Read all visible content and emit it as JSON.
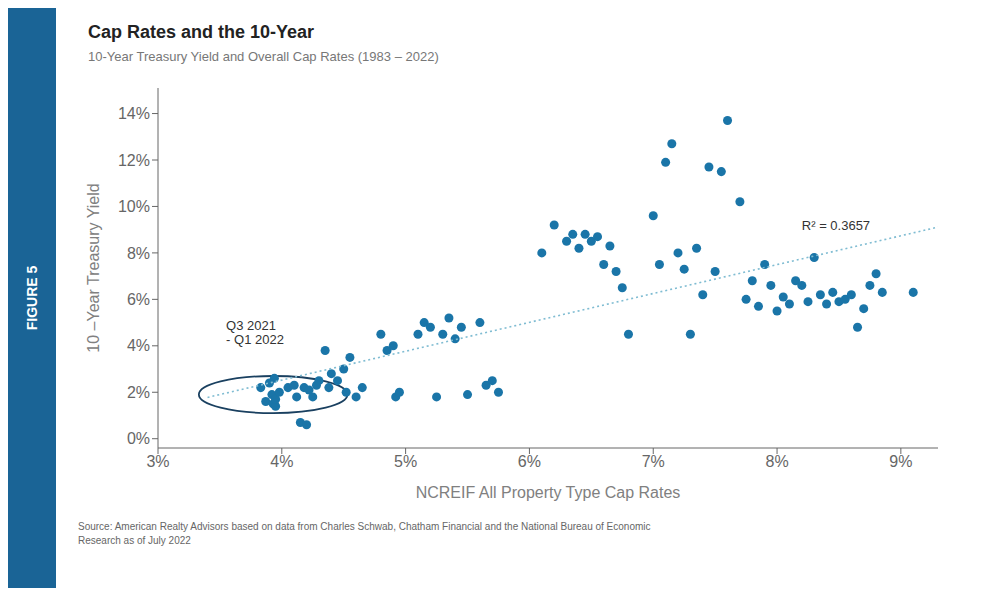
{
  "chart_data": {
    "type": "scatter",
    "title": "Cap Rates and the 10-Year",
    "subtitle": "10-Year Treasury Yield and Overall Cap Rates (1983 – 2022)",
    "xlabel": "NCREIF All Property Type Cap Rates",
    "ylabel": "10 –Year Treasury Yield",
    "figure_label": {
      "text": "FIGURE 5",
      "color": "#1a6496"
    },
    "source_text": "Source: American Realty Advisors based on data from Charles Schwab, Chatham Financial and the National Bureau of Economic\nResearch as of July 2022",
    "color": "#1a75a8",
    "grid": false,
    "x": [
      3.83,
      3.87,
      3.9,
      3.92,
      3.93,
      3.94,
      3.95,
      3.95,
      3.98,
      4.05,
      4.1,
      4.12,
      4.15,
      4.18,
      4.2,
      4.22,
      4.25,
      4.28,
      4.3,
      4.35,
      4.38,
      4.4,
      4.45,
      4.5,
      4.52,
      4.55,
      4.6,
      4.65,
      4.8,
      4.85,
      4.9,
      4.92,
      4.95,
      5.1,
      5.15,
      5.2,
      5.25,
      5.3,
      5.35,
      5.4,
      5.45,
      5.5,
      5.6,
      5.65,
      5.7,
      5.75,
      6.1,
      6.2,
      6.3,
      6.35,
      6.4,
      6.45,
      6.5,
      6.55,
      6.6,
      6.65,
      6.7,
      6.75,
      6.8,
      7.0,
      7.05,
      7.1,
      7.15,
      7.2,
      7.25,
      7.3,
      7.35,
      7.4,
      7.45,
      7.5,
      7.55,
      7.6,
      7.7,
      7.75,
      7.8,
      7.85,
      7.9,
      7.95,
      8.0,
      8.05,
      8.1,
      8.15,
      8.2,
      8.25,
      8.3,
      8.35,
      8.4,
      8.45,
      8.5,
      8.55,
      8.6,
      8.65,
      8.7,
      8.75,
      8.8,
      8.85,
      9.1
    ],
    "values": [
      2.2,
      1.6,
      2.4,
      1.9,
      1.5,
      2.6,
      1.4,
      1.7,
      2.0,
      2.2,
      2.3,
      1.8,
      0.7,
      2.2,
      0.6,
      2.1,
      1.8,
      2.3,
      2.5,
      3.8,
      2.2,
      2.8,
      2.5,
      3.0,
      2.0,
      3.5,
      1.8,
      2.2,
      4.5,
      3.8,
      4.0,
      1.8,
      2.0,
      4.5,
      5.0,
      4.8,
      1.8,
      4.5,
      5.2,
      4.3,
      4.8,
      1.9,
      5.0,
      2.3,
      2.5,
      2.0,
      8.0,
      9.2,
      8.5,
      8.8,
      8.2,
      8.8,
      8.5,
      8.7,
      7.5,
      8.3,
      7.2,
      6.5,
      4.5,
      9.6,
      7.5,
      11.9,
      12.7,
      8.0,
      7.3,
      4.5,
      8.2,
      6.2,
      11.7,
      7.2,
      11.5,
      13.7,
      10.2,
      6.0,
      6.8,
      5.7,
      7.5,
      6.6,
      5.5,
      6.1,
      5.8,
      6.8,
      6.6,
      5.9,
      7.8,
      6.2,
      5.8,
      6.3,
      5.9,
      6.0,
      6.2,
      4.8,
      5.6,
      6.6,
      7.1,
      6.3,
      6.3
    ],
    "trendline": {
      "x": [
        3.4,
        9.3
      ],
      "values": [
        1.7784,
        9.1103
      ],
      "color": "#7fbcd2",
      "line_style": "dotted"
    },
    "annotations": [
      {
        "text": "R² = 0.3657",
        "x": 8.2,
        "y": 9.1
      },
      {
        "text": "Q3 2021\n- Q1 2022",
        "x": 3.55,
        "y": 4.5
      }
    ],
    "ellipse": {
      "center": [
        3.93,
        1.9
      ],
      "width": 1.2,
      "height": 1.6,
      "color": "#1a4060"
    },
    "xlim": [
      3,
      9.3
    ],
    "ylim": [
      -0.4,
      15.1
    ],
    "xticks": [
      {
        "value": 3,
        "label": "3%"
      },
      {
        "value": 4,
        "label": "4%"
      },
      {
        "value": 5,
        "label": "5%"
      },
      {
        "value": 6,
        "label": "6%"
      },
      {
        "value": 7,
        "label": "7%"
      },
      {
        "value": 8,
        "label": "8%"
      },
      {
        "value": 9,
        "label": "9%"
      }
    ],
    "yticks": [
      {
        "value": 0,
        "label": "0%"
      },
      {
        "value": 2,
        "label": "2%"
      },
      {
        "value": 4,
        "label": "4%"
      },
      {
        "value": 6,
        "label": "6%"
      },
      {
        "value": 8,
        "label": "8%"
      },
      {
        "value": 10,
        "label": "10%"
      },
      {
        "value": 12,
        "label": "12%"
      },
      {
        "value": 14,
        "label": "14%"
      }
    ]
  }
}
